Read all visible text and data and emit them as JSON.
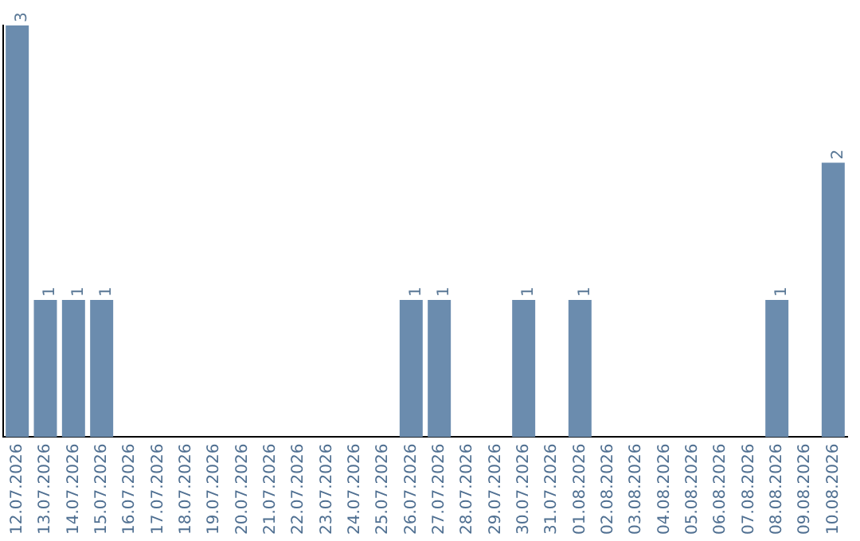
{
  "chart_data": {
    "type": "bar",
    "categories": [
      "12.07.2026",
      "13.07.2026",
      "14.07.2026",
      "15.07.2026",
      "16.07.2026",
      "17.07.2026",
      "18.07.2026",
      "19.07.2026",
      "20.07.2026",
      "21.07.2026",
      "22.07.2026",
      "23.07.2026",
      "24.07.2026",
      "25.07.2026",
      "26.07.2026",
      "27.07.2026",
      "28.07.2026",
      "29.07.2026",
      "30.07.2026",
      "31.07.2026",
      "01.08.2026",
      "02.08.2026",
      "03.08.2026",
      "04.08.2026",
      "05.08.2026",
      "06.08.2026",
      "07.08.2026",
      "08.08.2026",
      "09.08.2026",
      "10.08.2026"
    ],
    "values": [
      3,
      1,
      1,
      1,
      0,
      0,
      0,
      0,
      0,
      0,
      0,
      0,
      0,
      0,
      1,
      1,
      0,
      0,
      1,
      0,
      1,
      0,
      0,
      0,
      0,
      0,
      0,
      1,
      0,
      2
    ],
    "value_labels": [
      "3",
      "1",
      "1",
      "1",
      null,
      null,
      null,
      null,
      null,
      null,
      null,
      null,
      null,
      null,
      "1",
      "1",
      null,
      null,
      "1",
      null,
      "1",
      null,
      null,
      null,
      null,
      null,
      null,
      "1",
      null,
      "2"
    ],
    "color": "#6b8cae",
    "tick_labels": "x",
    "grid": false,
    "legend": false
  }
}
